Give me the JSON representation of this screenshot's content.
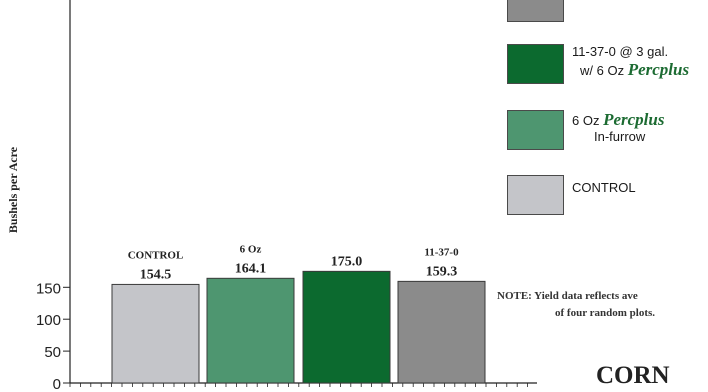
{
  "chart_data": {
    "type": "bar",
    "ylabel": "Bushels per Acre",
    "ylim": [
      0,
      175
    ],
    "yticks": [
      0,
      50,
      100,
      150
    ],
    "grid": false,
    "legend_position": "right",
    "bars": [
      {
        "top_label": "CONTROL",
        "value": 154.5,
        "color": "#c4c5c9"
      },
      {
        "top_label": "6 Oz",
        "value": 164.1,
        "color": "#4e9670"
      },
      {
        "top_label": "",
        "value": 175.0,
        "color": "#0c6a2f"
      },
      {
        "top_label": "11-37-0",
        "value": 159.3,
        "color": "#8b8b8b"
      }
    ]
  },
  "legend": {
    "item1": {
      "color": "#8b8b8b",
      "text": ""
    },
    "item2": {
      "color": "#0c6a2f",
      "line1": "11-37-0 @ 3 gal.",
      "line2_prefix": "w/ 6 Oz",
      "brand": "Percplus"
    },
    "item3": {
      "color": "#4e9670",
      "line1_prefix": "6 Oz",
      "brand": "Percplus",
      "line2": "In-furrow"
    },
    "item4": {
      "color": "#c4c5c9",
      "line1": "CONTROL"
    }
  },
  "note": {
    "line1": "NOTE:  Yield data reflects ave",
    "line2": "of four random plots."
  },
  "crop_label": "CORN"
}
